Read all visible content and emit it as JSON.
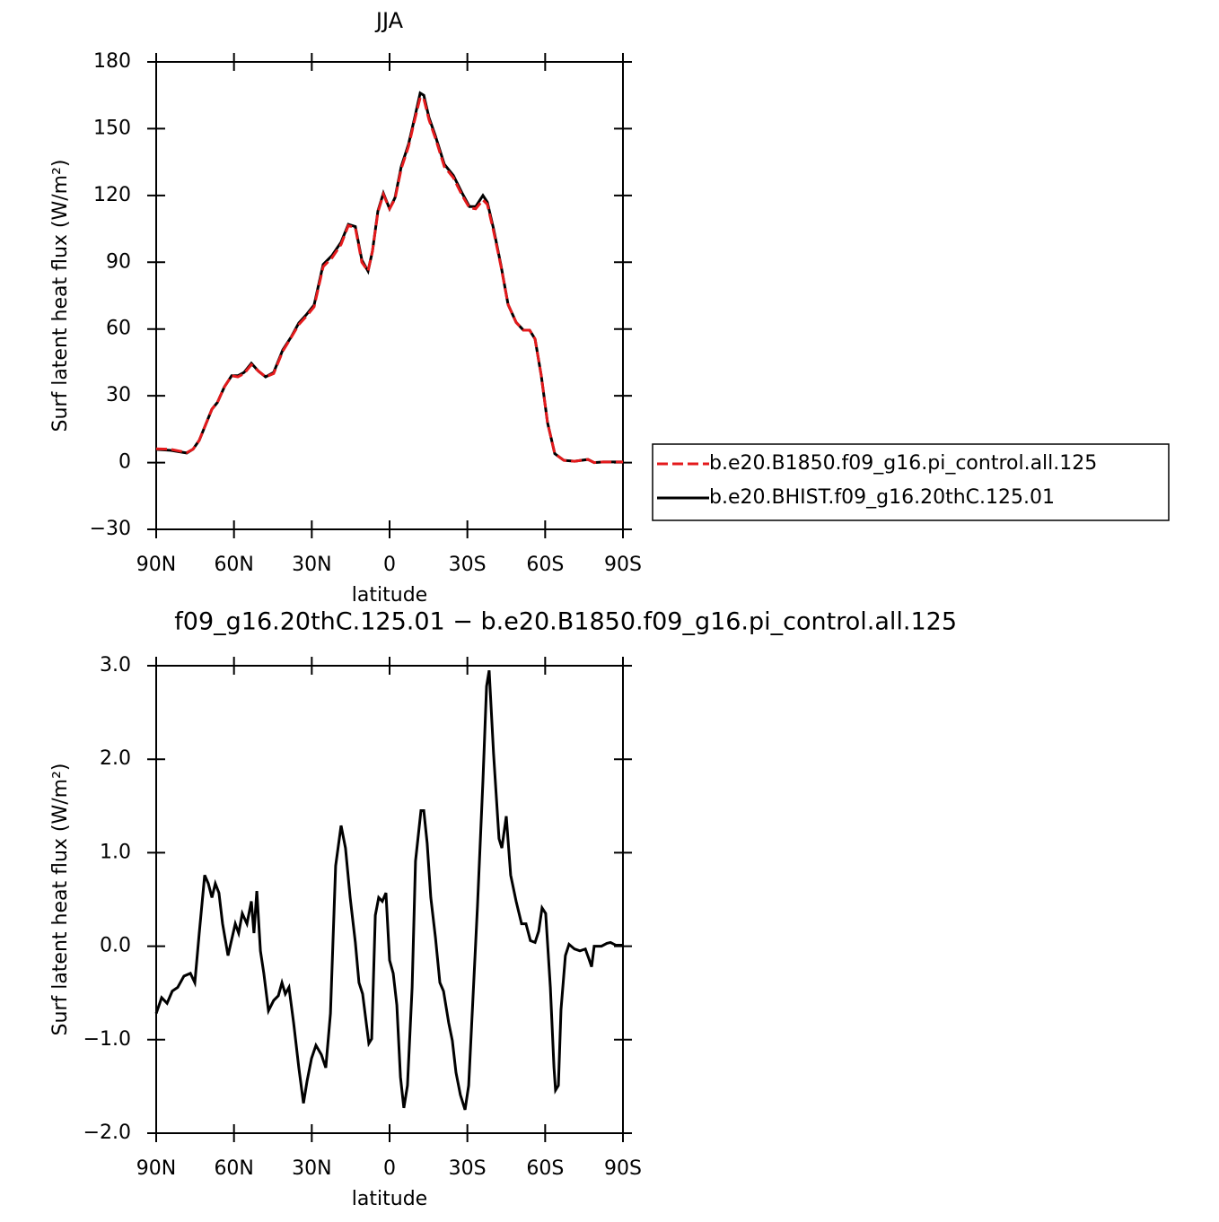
{
  "chart_data": [
    {
      "type": "line",
      "title": "JJA",
      "xlabel": "latitude",
      "ylabel": "Surf latent heat flux (W/m²)",
      "x": [
        90,
        84.5,
        78.2,
        75.8,
        73.4,
        70.6,
        68.5,
        66.4,
        63.7,
        60.9,
        58.5,
        56.1,
        53.3,
        50.5,
        47.8,
        44.7,
        41.2,
        37.8,
        35,
        31.9,
        29.1,
        25.6,
        22.2,
        18.7,
        15.9,
        13.2,
        10.7,
        8.3,
        6.6,
        4.5,
        2.4,
        0,
        -2.1,
        -4.5,
        -7.3,
        -9.7,
        -11.8,
        -13.2,
        -15.2,
        -17.6,
        -21.1,
        -24.6,
        -28,
        -30.8,
        -33.2,
        -36,
        -37.7,
        -40.1,
        -42.9,
        -45.7,
        -48.8,
        -51.6,
        -54,
        -56.1,
        -58.5,
        -60.9,
        -63.7,
        -67.2,
        -71.3,
        -76.5,
        -78.9,
        -82.4,
        -90
      ],
      "series": [
        {
          "name": "b.e20.B1850.f09_g16.pi_control.all.125",
          "color": "#e41a1c",
          "linestyle": "dashed",
          "values": [
            6.2,
            6,
            4.5,
            6,
            10,
            18,
            24,
            27,
            34,
            39,
            38.5,
            40,
            44,
            41,
            38.5,
            40,
            50,
            56.5,
            62,
            66,
            70,
            88,
            92,
            98,
            106.5,
            105.5,
            90,
            86,
            95,
            112.5,
            120.5,
            114,
            118.5,
            132,
            142,
            154,
            164,
            163.5,
            154,
            146,
            133,
            128,
            120,
            114.5,
            114,
            118,
            116,
            104,
            88.5,
            71,
            63,
            59.5,
            59.5,
            55.5,
            39,
            18,
            4,
            1,
            0.6,
            1.4,
            0,
            0.3,
            0.3
          ]
        },
        {
          "name": "b.e20.BHIST.f09_g16.20thC.125.01",
          "color": "#000000",
          "linestyle": "solid",
          "values": [
            5.9,
            5.5,
            4.3,
            6,
            10,
            18,
            24,
            27,
            34,
            39,
            39,
            40.5,
            44.6,
            41,
            38.5,
            40.5,
            50.6,
            56.7,
            62.7,
            66.7,
            70.8,
            89,
            93,
            99,
            107,
            106,
            91,
            86,
            95,
            113,
            121,
            114,
            119,
            133,
            143,
            155,
            166,
            165,
            155,
            147,
            134,
            129,
            121,
            115,
            115,
            120,
            117,
            105,
            89,
            71,
            63,
            59.5,
            59.5,
            55.5,
            39,
            18,
            4,
            1,
            0.6,
            1.4,
            0,
            0.3,
            0.3
          ]
        }
      ],
      "xlim": [
        90,
        -90
      ],
      "xticks": [
        {
          "value": 90,
          "label": "90N"
        },
        {
          "value": 60,
          "label": "60N"
        },
        {
          "value": 30,
          "label": "30N"
        },
        0,
        {
          "value": -30,
          "label": "30S"
        },
        {
          "value": -60,
          "label": "60S"
        },
        {
          "value": -90,
          "label": "90S"
        }
      ],
      "ylim": [
        -30,
        180
      ],
      "yticks": [
        {
          "value": -30,
          "label": "−30"
        },
        0,
        30,
        60,
        90,
        120,
        150,
        180
      ],
      "legend": "right"
    },
    {
      "type": "line",
      "title": "f09_g16.20thC.125.01 − b.e20.B1850.f09_g16.pi_control.all.125",
      "xlabel": "latitude",
      "ylabel": "Surf latent heat flux (W/m²)",
      "x": [
        90,
        87.9,
        85.8,
        83.8,
        81.7,
        79.3,
        76.8,
        75.1,
        73.4,
        71.3,
        69.9,
        68.5,
        67.2,
        65.8,
        64.4,
        62.3,
        59.5,
        58.2,
        56.8,
        55,
        53.3,
        52.3,
        51.2,
        49.8,
        48.5,
        46.7,
        44.7,
        42.9,
        41.5,
        40.2,
        38.8,
        37,
        35,
        33.2,
        31.8,
        30.1,
        28.4,
        26.3,
        24.6,
        22.8,
        20.8,
        18.7,
        17,
        15.2,
        13.2,
        11.8,
        10.4,
        8,
        6.9,
        5.5,
        4.2,
        2.8,
        1.4,
        0,
        -1.4,
        -2.8,
        -4.2,
        -5.5,
        -6.9,
        -8.7,
        -10,
        -12.1,
        -13.2,
        -14.5,
        -15.9,
        -17.7,
        -19.4,
        -20.8,
        -22.8,
        -24.2,
        -25.6,
        -27.3,
        -29.1,
        -30.5,
        -32.2,
        -33.9,
        -36,
        -37.4,
        -38.4,
        -40.1,
        -42.2,
        -43.3,
        -45,
        -46.7,
        -48.8,
        -50.9,
        -52.6,
        -54.3,
        -56.1,
        -57.5,
        -58.8,
        -60.2,
        -62,
        -63.4,
        -64,
        -65.1,
        -66.1,
        -67.8,
        -69.2,
        -71.3,
        -73.4,
        -75.5,
        -76.8,
        -77.9,
        -78.9,
        -81.7,
        -83.8,
        -85.2,
        -87.3,
        -90
      ],
      "series": [
        {
          "color": "#000000",
          "linestyle": "solid",
          "values": [
            -0.72,
            -0.55,
            -0.61,
            -0.48,
            -0.44,
            -0.32,
            -0.29,
            -0.39,
            0.14,
            0.76,
            0.67,
            0.52,
            0.67,
            0.57,
            0.24,
            -0.1,
            0.24,
            0.14,
            0.35,
            0.24,
            0.48,
            0.14,
            0.59,
            -0.05,
            -0.29,
            -0.69,
            -0.58,
            -0.53,
            -0.39,
            -0.51,
            -0.44,
            -0.82,
            -1.3,
            -1.68,
            -1.44,
            -1.2,
            -1.06,
            -1.16,
            -1.3,
            -0.72,
            0.86,
            1.29,
            1.05,
            0.52,
            0.04,
            -0.39,
            -0.51,
            -1.04,
            -0.99,
            0.33,
            0.52,
            0.48,
            0.57,
            -0.15,
            -0.29,
            -0.63,
            -1.4,
            -1.73,
            -1.49,
            -0.44,
            0.91,
            1.45,
            1.45,
            1.1,
            0.52,
            0.09,
            -0.39,
            -0.48,
            -0.82,
            -1.01,
            -1.35,
            -1.59,
            -1.75,
            -1.49,
            -0.53,
            0.43,
            1.77,
            2.78,
            2.95,
            2.06,
            1.15,
            1.05,
            1.39,
            0.76,
            0.48,
            0.24,
            0.24,
            0.06,
            0.04,
            0.16,
            0.41,
            0.35,
            -0.44,
            -1.3,
            -1.54,
            -1.49,
            -0.68,
            -0.1,
            0.02,
            -0.03,
            -0.05,
            -0.03,
            -0.13,
            -0.22,
            0,
            0,
            0.03,
            0.04,
            0.01,
            0.01
          ]
        }
      ],
      "xlim": [
        90,
        -90
      ],
      "xticks": [
        {
          "value": 90,
          "label": "90N"
        },
        {
          "value": 60,
          "label": "60N"
        },
        {
          "value": 30,
          "label": "30N"
        },
        0,
        {
          "value": -30,
          "label": "30S"
        },
        {
          "value": -60,
          "label": "60S"
        },
        {
          "value": -90,
          "label": "90S"
        }
      ],
      "ylim": [
        -2,
        3
      ],
      "yticks": [
        {
          "value": -2,
          "label": "−2.0"
        },
        {
          "value": -1,
          "label": "−1.0"
        },
        {
          "value": 0,
          "label": "0.0"
        },
        {
          "value": 1,
          "label": "1.0"
        },
        {
          "value": 2,
          "label": "2.0"
        },
        {
          "value": 3,
          "label": "3.0"
        }
      ]
    }
  ]
}
